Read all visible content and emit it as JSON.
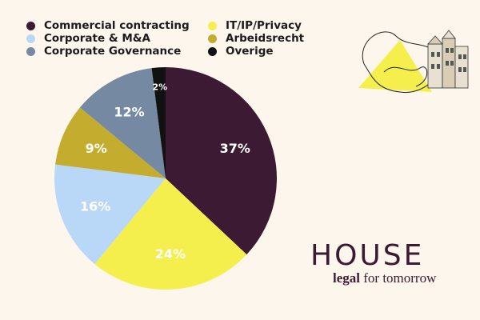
{
  "chart_data": {
    "type": "pie",
    "start": "top, clockwise",
    "slices": [
      {
        "label": "Commercial contracting",
        "value": 37,
        "display": "37%",
        "color": "#3d1a33",
        "text_color": "#ffffff"
      },
      {
        "label": "IT/IP/Privacy",
        "value": 24,
        "display": "24%",
        "color": "#f5ef4e",
        "text_color": "#ffffff"
      },
      {
        "label": "Corporate & M&A",
        "value": 16,
        "display": "16%",
        "color": "#b9d7f7",
        "text_color": "#ffffff"
      },
      {
        "label": "Arbeidsrecht",
        "value": 9,
        "display": "9%",
        "color": "#c4ad2e",
        "text_color": "#ffffff"
      },
      {
        "label": "Corporate Governance",
        "value": 12,
        "display": "12%",
        "color": "#7589a3",
        "text_color": "#ffffff"
      },
      {
        "label": "Overige",
        "value": 2,
        "display": "2%",
        "color": "#111111",
        "text_color": "#ffffff"
      }
    ],
    "legend_order": [
      0,
      2,
      4,
      1,
      3,
      5
    ],
    "legend_placement": "top-left"
  },
  "brand": {
    "name": "HOUSE",
    "tagline_bold": "legal",
    "tagline_rest": " for tomorrow",
    "color": "#3d1a33"
  }
}
